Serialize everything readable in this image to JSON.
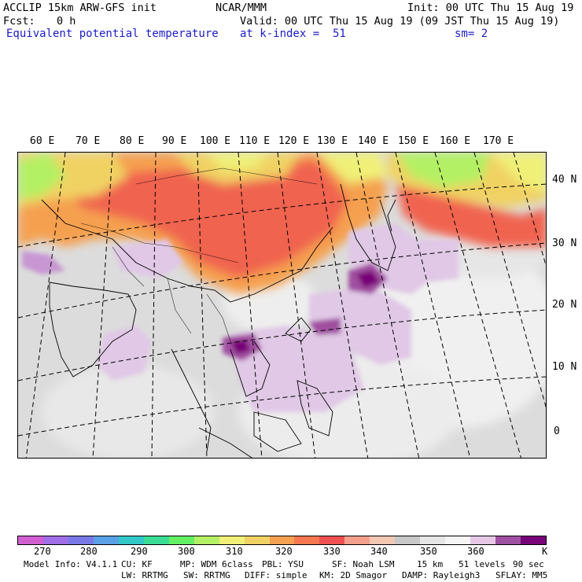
{
  "header": {
    "model_line": "ACCLIP 15km ARW-GFS init",
    "fcst_label": "Fcst:",
    "fcst_value": "0 h",
    "field_name": "Equivalent potential temperature",
    "center": "NCAR/MMM",
    "init": "Init: 00 UTC Thu 15 Aug 19",
    "valid": "Valid: 00 UTC Thu 15 Aug 19 (09 JST Thu 15 Aug 19)",
    "level": "at k-index =  51",
    "smoothing": "sm= 2"
  },
  "map": {
    "longitude_labels": [
      "60 E",
      "70 E",
      "80 E",
      "90 E",
      "100 E",
      "110 E",
      "120 E",
      "130 E",
      "140 E",
      "150 E",
      "160 E",
      "170 E"
    ],
    "latitude_labels": [
      "40 N",
      "30 N",
      "20 N",
      "10 N",
      "0"
    ]
  },
  "colorbar": {
    "colors": [
      "#d25fd2",
      "#a06ee6",
      "#7878e6",
      "#5aa0e6",
      "#32c8c8",
      "#3cdc96",
      "#64f064",
      "#b4f064",
      "#f0f078",
      "#f0d264",
      "#f5a050",
      "#f57850",
      "#f05050",
      "#f5a08c",
      "#f0c8b4",
      "#c8c8c8",
      "#e6e6e6",
      "#f5f5f5",
      "#e6c8e6",
      "#a050a0",
      "#780078"
    ],
    "labels": [
      "270",
      "280",
      "290",
      "300",
      "310",
      "320",
      "330",
      "340",
      "350",
      "360",
      "K"
    ]
  },
  "footer": {
    "line1": [
      {
        "key": "model_info",
        "text": "Model Info: V4.1.1"
      },
      {
        "key": "cu",
        "text": "CU: KF"
      },
      {
        "key": "mp",
        "text": "MP: WDM 6class"
      },
      {
        "key": "pbl",
        "text": "PBL: YSU"
      },
      {
        "key": "sf",
        "text": "SF: Noah LSM"
      },
      {
        "key": "res",
        "text": "15 km"
      },
      {
        "key": "levels",
        "text": "51 levels"
      },
      {
        "key": "dt",
        "text": "90 sec"
      }
    ],
    "line2": [
      {
        "key": "lw",
        "text": "LW: RRTMG"
      },
      {
        "key": "sw",
        "text": "SW: RRTMG"
      },
      {
        "key": "diff",
        "text": "DIFF: simple"
      },
      {
        "key": "km",
        "text": "KM: 2D Smagor"
      },
      {
        "key": "damp",
        "text": "DAMP: Rayleigh3"
      },
      {
        "key": "sflay",
        "text": "SFLAY: MM5"
      }
    ]
  }
}
